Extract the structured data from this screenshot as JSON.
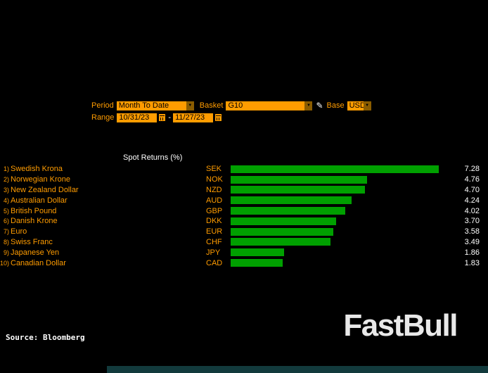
{
  "controls": {
    "period_label": "Period",
    "period_value": "Month To Date",
    "basket_label": "Basket",
    "basket_value": "G10",
    "base_label": "Base",
    "base_value": "USD",
    "range_label": "Range",
    "range_start": "10/31/23",
    "range_separator": "-",
    "range_end": "11/27/23"
  },
  "chart_data": {
    "type": "bar",
    "orientation": "horizontal",
    "title": "Spot Returns (%)",
    "xlim": [
      0,
      7.28
    ],
    "bar_color": "#00a000",
    "rows": [
      {
        "index": "1)",
        "name": "Swedish Krona",
        "code": "SEK",
        "value": 7.28,
        "display": "7.28"
      },
      {
        "index": "2)",
        "name": "Norwegian Krone",
        "code": "NOK",
        "value": 4.76,
        "display": "4.76"
      },
      {
        "index": "3)",
        "name": "New Zealand Dollar",
        "code": "NZD",
        "value": 4.7,
        "display": "4.70"
      },
      {
        "index": "4)",
        "name": "Australian Dollar",
        "code": "AUD",
        "value": 4.24,
        "display": "4.24"
      },
      {
        "index": "5)",
        "name": "British Pound",
        "code": "GBP",
        "value": 4.02,
        "display": "4.02"
      },
      {
        "index": "6)",
        "name": "Danish Krone",
        "code": "DKK",
        "value": 3.7,
        "display": "3.70"
      },
      {
        "index": "7)",
        "name": "Euro",
        "code": "EUR",
        "value": 3.58,
        "display": "3.58"
      },
      {
        "index": "8)",
        "name": "Swiss Franc",
        "code": "CHF",
        "value": 3.49,
        "display": "3.49"
      },
      {
        "index": "9)",
        "name": "Japanese Yen",
        "code": "JPY",
        "value": 1.86,
        "display": "1.86"
      },
      {
        "index": "10)",
        "name": "Canadian Dollar",
        "code": "CAD",
        "value": 1.83,
        "display": "1.83"
      }
    ]
  },
  "footer": {
    "source": "Source: Bloomberg",
    "logo_text": "FastBull"
  },
  "colors": {
    "background": "#000000",
    "accent_orange": "#ff9c00",
    "bar_green": "#00a000",
    "text_white": "#ffffff",
    "bottom_strip": "#123a3c"
  }
}
